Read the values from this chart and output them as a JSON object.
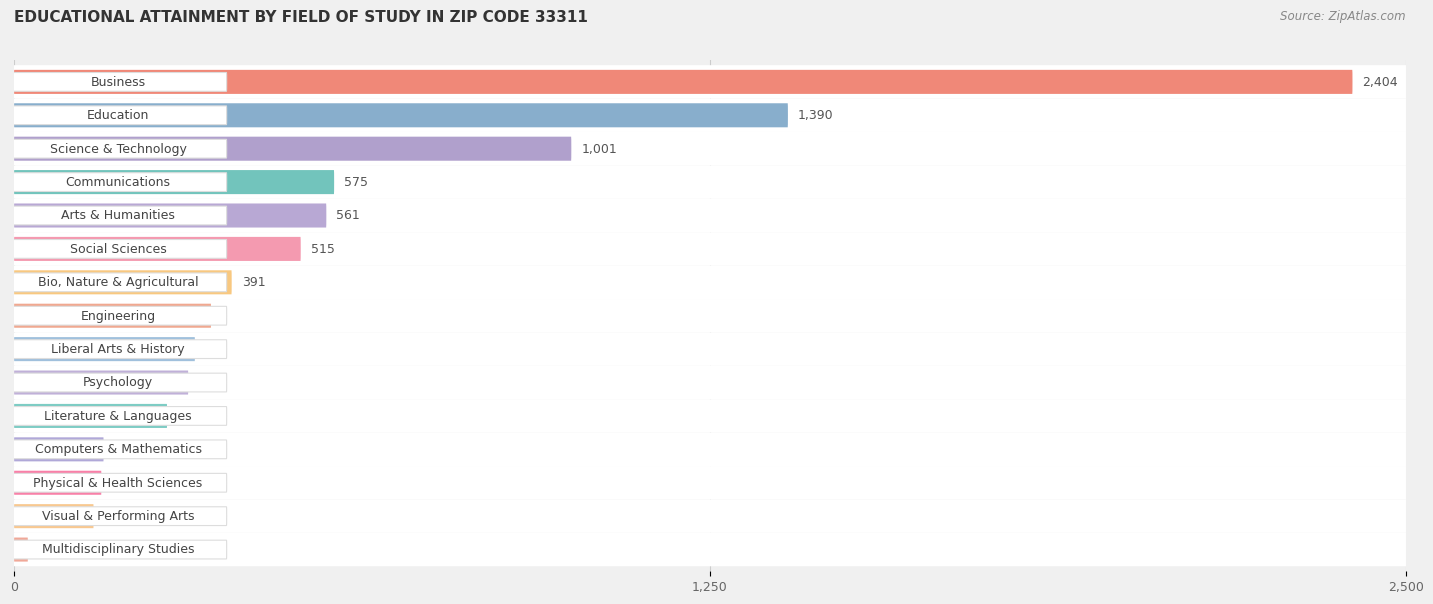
{
  "title": "EDUCATIONAL ATTAINMENT BY FIELD OF STUDY IN ZIP CODE 33311",
  "source": "Source: ZipAtlas.com",
  "categories": [
    "Business",
    "Education",
    "Science & Technology",
    "Communications",
    "Arts & Humanities",
    "Social Sciences",
    "Bio, Nature & Agricultural",
    "Engineering",
    "Liberal Arts & History",
    "Psychology",
    "Literature & Languages",
    "Computers & Mathematics",
    "Physical & Health Sciences",
    "Visual & Performing Arts",
    "Multidisciplinary Studies"
  ],
  "values": [
    2404,
    1390,
    1001,
    575,
    561,
    515,
    391,
    354,
    325,
    313,
    275,
    161,
    157,
    143,
    25
  ],
  "colors": [
    "#F08878",
    "#88AECC",
    "#B0A0CC",
    "#72C4BC",
    "#B8A8D4",
    "#F49AB0",
    "#F8C880",
    "#F0A890",
    "#A0C0DC",
    "#C0B0D8",
    "#7ECCC4",
    "#B0A8D8",
    "#F880A8",
    "#F8C890",
    "#F0A898"
  ],
  "xlim": [
    0,
    2500
  ],
  "xticks": [
    0,
    1250,
    2500
  ],
  "background_color": "#f0f0f0",
  "row_bg_color": "#ffffff",
  "title_fontsize": 11,
  "source_fontsize": 8.5,
  "bar_label_fontsize": 9,
  "value_fontsize": 9
}
